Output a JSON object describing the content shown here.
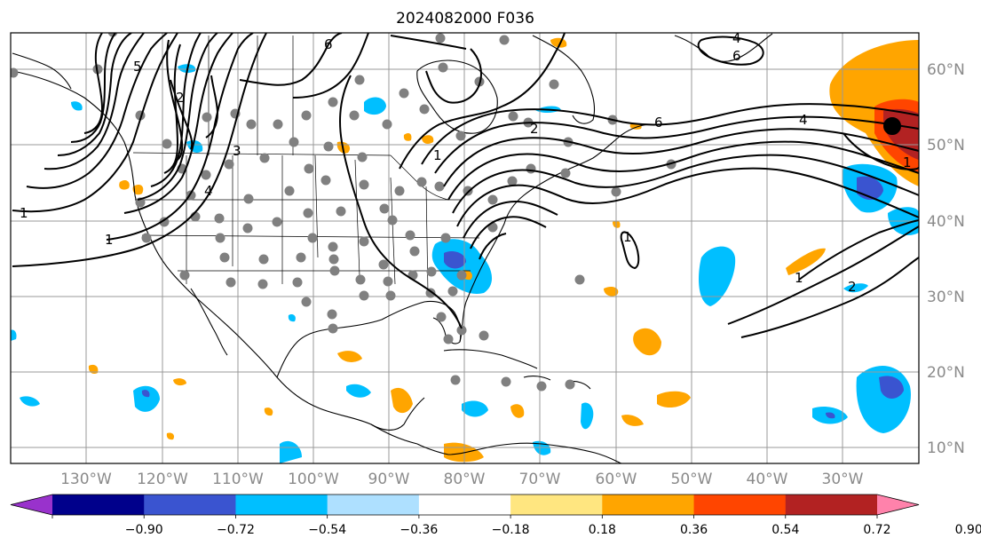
{
  "title": "2024082000 F036",
  "lon_ticks": [
    "130°W",
    "120°W",
    "110°W",
    "100°W",
    "90°W",
    "80°W",
    "70°W",
    "60°W",
    "50°W",
    "40°W",
    "30°W"
  ],
  "lat_ticks": [
    "60°N",
    "50°N",
    "40°N",
    "30°N",
    "20°N",
    "10°N"
  ],
  "colorbar": {
    "colors": [
      "#9932cc",
      "#00008b",
      "#3a54d0",
      "#00bfff",
      "#aee0ff",
      "#ffffff",
      "#ffe680",
      "#ffa500",
      "#ff4500",
      "#b22222",
      "#ff82ab"
    ],
    "tick_labels": [
      "−0.90",
      "−0.72",
      "−0.54",
      "−0.36",
      "−0.18",
      "0.18",
      "0.36",
      "0.54",
      "0.72",
      "0.90"
    ]
  },
  "contour_labels": [
    "1",
    "2",
    "3",
    "4",
    "5",
    "6",
    "4",
    "6",
    "1",
    "2",
    "4",
    "6",
    "1",
    "1",
    "1",
    "2",
    "1"
  ]
}
